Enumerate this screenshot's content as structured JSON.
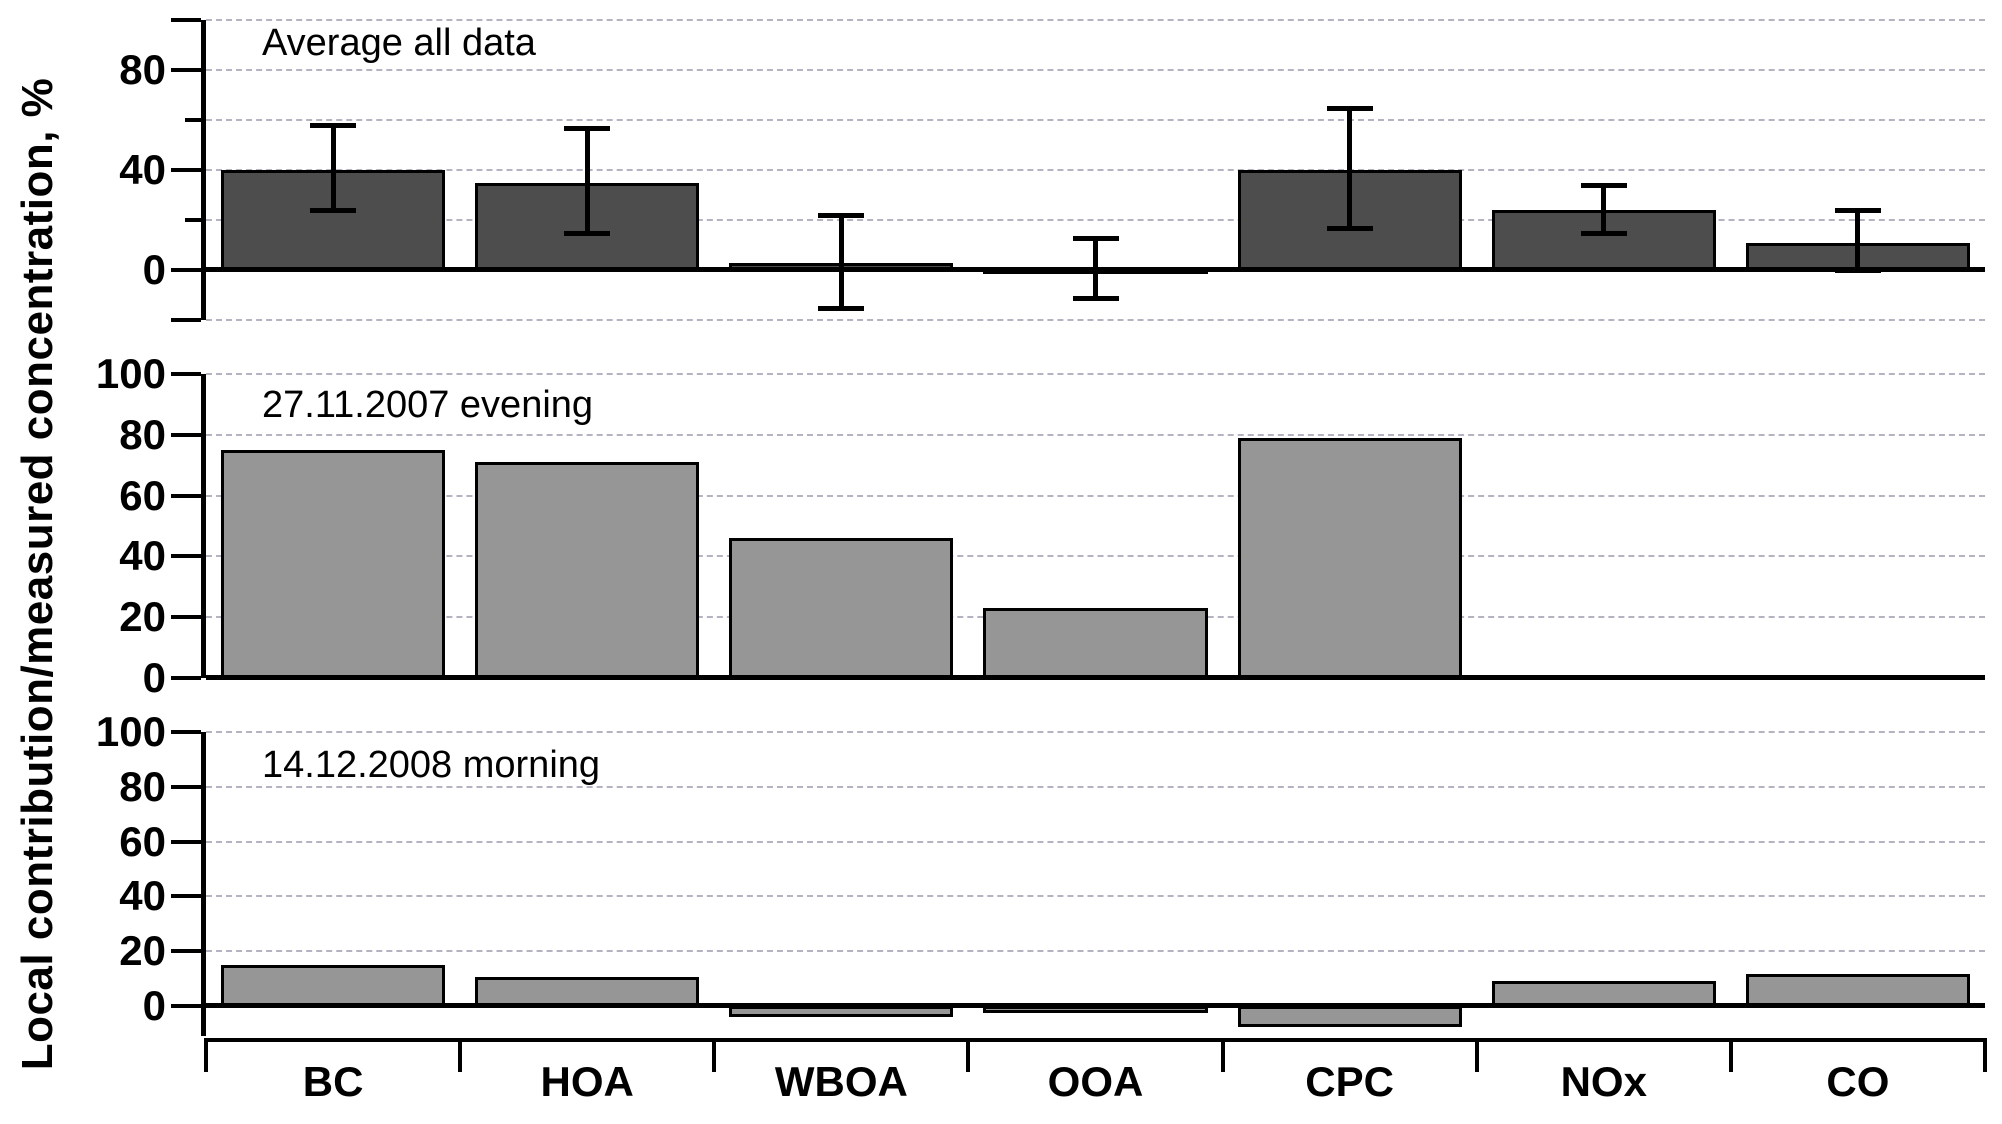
{
  "figure": {
    "y_axis_title": "Local contribution/measured concentration, %",
    "categories": [
      "BC",
      "HOA",
      "WBOA",
      "OOA",
      "CPC",
      "NOx",
      "CO"
    ]
  },
  "colors": {
    "dark_bar": "#4d4d4d",
    "light_bar": "#969696",
    "gridline": "#b3b3c2",
    "axis": "#000000",
    "background": "#ffffff"
  },
  "chart_data": [
    {
      "type": "bar",
      "title": "Average all data",
      "categories": [
        "BC",
        "HOA",
        "WBOA",
        "OOA",
        "CPC",
        "NOx",
        "CO"
      ],
      "values": [
        40,
        35,
        3,
        1,
        40,
        24,
        11
      ],
      "error_low": [
        24,
        15,
        -15,
        -11,
        17,
        15,
        0
      ],
      "error_high": [
        58,
        57,
        22,
        13,
        65,
        34,
        24
      ],
      "ylim": [
        -20,
        100
      ],
      "bar_color": "#4d4d4d",
      "grid_on": true,
      "gridlines": [
        -20,
        20,
        40,
        60,
        80,
        100
      ],
      "yticks": [
        {
          "v": 100,
          "label": ""
        },
        {
          "v": 80,
          "label": "80"
        },
        {
          "v": 60,
          "minor": true
        },
        {
          "v": 40,
          "label": "40"
        },
        {
          "v": 20,
          "minor": true
        },
        {
          "v": 0,
          "label": "0"
        },
        {
          "v": -20,
          "label": ""
        }
      ]
    },
    {
      "type": "bar",
      "title": "27.11.2007 evening",
      "categories": [
        "BC",
        "HOA",
        "WBOA",
        "OOA",
        "CPC",
        "NOx",
        "CO"
      ],
      "values": [
        75,
        71,
        46,
        23,
        79,
        0,
        0
      ],
      "ylim": [
        0,
        100
      ],
      "bar_color": "#969696",
      "grid_on": true,
      "gridlines": [
        20,
        40,
        60,
        80,
        100
      ],
      "yticks": [
        {
          "v": 100,
          "label": "100"
        },
        {
          "v": 80,
          "label": "80"
        },
        {
          "v": 60,
          "label": "60"
        },
        {
          "v": 40,
          "label": "40"
        },
        {
          "v": 20,
          "label": "20"
        },
        {
          "v": 0,
          "label": "0"
        }
      ]
    },
    {
      "type": "bar",
      "title": "14.12.2008 morning",
      "categories": [
        "BC",
        "HOA",
        "WBOA",
        "OOA",
        "CPC",
        "NOx",
        "CO"
      ],
      "values": [
        15,
        10.5,
        -3.5,
        -2,
        -7,
        9,
        11.5
      ],
      "ylim": [
        -11,
        100
      ],
      "bar_color": "#969696",
      "grid_on": true,
      "gridlines": [
        20,
        40,
        60,
        80,
        100
      ],
      "yticks": [
        {
          "v": 100,
          "label": "100"
        },
        {
          "v": 80,
          "label": "80"
        },
        {
          "v": 60,
          "label": "60"
        },
        {
          "v": 40,
          "label": "40"
        },
        {
          "v": 20,
          "label": "20"
        },
        {
          "v": 0,
          "label": "0"
        }
      ]
    }
  ]
}
